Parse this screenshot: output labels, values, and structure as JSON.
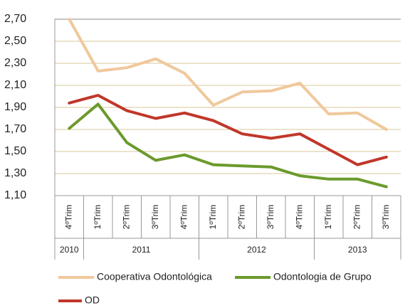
{
  "chart_data": {
    "type": "line",
    "categories": [
      "4ºTrim",
      "1ºTrim",
      "2ºTrim",
      "3ºTrim",
      "4ºTrim",
      "1ºTrim",
      "2ºTrim",
      "3ºTrim",
      "4ºTrim",
      "1ºTrim",
      "2ºTrim",
      "3ºTrim"
    ],
    "x_groups": [
      {
        "label": "2010",
        "size": 1
      },
      {
        "label": "2011",
        "size": 4
      },
      {
        "label": "2012",
        "size": 4
      },
      {
        "label": "2013",
        "size": 3
      }
    ],
    "series": [
      {
        "name": "Cooperativa Odontológica",
        "color": "#f0c89c",
        "values": [
          2.7,
          2.23,
          2.26,
          2.34,
          2.21,
          1.92,
          2.04,
          2.05,
          2.12,
          1.84,
          1.85,
          1.7
        ]
      },
      {
        "name": "Odontologia de Grupo",
        "color": "#6b9a2c",
        "values": [
          1.71,
          1.93,
          1.58,
          1.42,
          1.47,
          1.38,
          1.37,
          1.36,
          1.28,
          1.25,
          1.25,
          1.18
        ]
      },
      {
        "name": "OD",
        "color": "#c0372a",
        "values": [
          1.94,
          2.01,
          1.87,
          1.8,
          1.85,
          1.78,
          1.66,
          1.62,
          1.66,
          1.52,
          1.38,
          1.45
        ]
      }
    ],
    "ylim": [
      1.1,
      2.7
    ],
    "yticks": [
      {
        "value": 1.1,
        "label": "1,10"
      },
      {
        "value": 1.3,
        "label": "1,30"
      },
      {
        "value": 1.5,
        "label": "1,50"
      },
      {
        "value": 1.7,
        "label": "1,70"
      },
      {
        "value": 1.9,
        "label": "1,90"
      },
      {
        "value": 2.1,
        "label": "2,10"
      },
      {
        "value": 2.3,
        "label": "2,30"
      },
      {
        "value": 2.5,
        "label": "2,50"
      },
      {
        "value": 2.7,
        "label": "2,70"
      }
    ],
    "grid": true
  }
}
